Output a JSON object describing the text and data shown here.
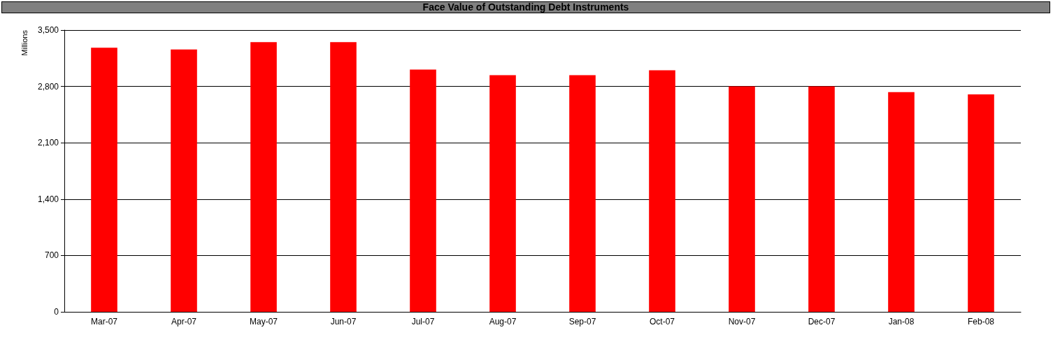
{
  "chart_data": {
    "type": "bar",
    "title": "Face Value of Outstanding Debt Instruments",
    "ylabel": "Millions",
    "categories": [
      "Mar-07",
      "Apr-07",
      "May-07",
      "Jun-07",
      "Jul-07",
      "Aug-07",
      "Sep-07",
      "Oct-07",
      "Nov-07",
      "Dec-07",
      "Jan-08",
      "Feb-08"
    ],
    "values": [
      3280,
      3260,
      3350,
      3350,
      3010,
      2940,
      2940,
      3000,
      2800,
      2800,
      2730,
      2700
    ],
    "color": "#ff0000",
    "ylim": [
      0,
      3500
    ],
    "yticks": [
      {
        "value": 0,
        "label": "0"
      },
      {
        "value": 700,
        "label": "700"
      },
      {
        "value": 1400,
        "label": "1,400"
      },
      {
        "value": 2100,
        "label": "2,100"
      },
      {
        "value": 2800,
        "label": "2,800"
      },
      {
        "value": 3500,
        "label": "3,500"
      }
    ],
    "grid": "y"
  }
}
